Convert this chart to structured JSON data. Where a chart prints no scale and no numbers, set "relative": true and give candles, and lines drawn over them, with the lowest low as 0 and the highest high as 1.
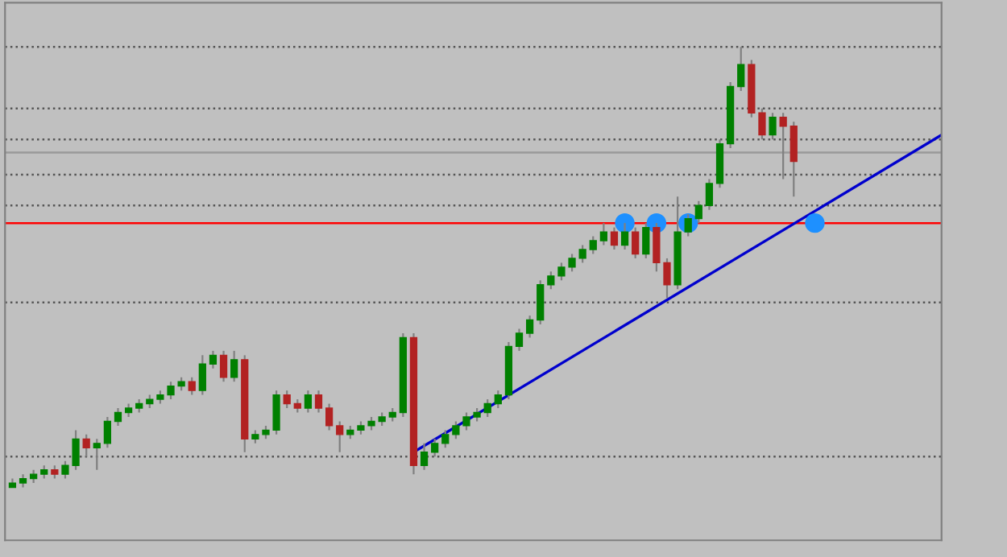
{
  "chart_data": {
    "type": "candlestick",
    "relative": true,
    "grid": false,
    "legend": false,
    "categories": [
      null,
      null,
      null,
      null,
      null,
      null,
      null,
      null,
      null,
      null,
      null,
      null,
      null,
      null,
      null,
      null,
      null,
      null,
      null,
      null,
      null,
      null,
      null,
      null,
      null,
      null,
      null,
      null,
      null,
      null,
      null,
      null,
      null,
      null,
      null,
      null,
      null,
      null,
      null,
      null,
      null,
      null,
      null,
      null,
      null,
      null,
      null,
      null,
      null,
      null,
      null,
      null,
      null,
      null,
      null,
      null,
      null,
      null,
      null,
      null,
      null,
      null,
      null,
      null,
      null,
      null,
      null,
      null,
      null,
      null,
      null,
      null,
      null,
      null,
      null,
      null,
      null,
      null,
      null,
      null,
      null,
      null,
      null,
      null,
      null,
      null,
      null,
      null,
      null
    ],
    "ohlc": [
      [
        0.0,
        0.02,
        0.0,
        0.01
      ],
      [
        0.01,
        0.03,
        0.0,
        0.02
      ],
      [
        0.02,
        0.04,
        0.01,
        0.03
      ],
      [
        0.03,
        0.05,
        0.02,
        0.04
      ],
      [
        0.04,
        0.05,
        0.02,
        0.03
      ],
      [
        0.03,
        0.06,
        0.02,
        0.05
      ],
      [
        0.05,
        0.13,
        0.04,
        0.11
      ],
      [
        0.11,
        0.12,
        0.07,
        0.09
      ],
      [
        0.09,
        0.11,
        0.04,
        0.1
      ],
      [
        0.1,
        0.16,
        0.09,
        0.15
      ],
      [
        0.15,
        0.18,
        0.14,
        0.17
      ],
      [
        0.17,
        0.19,
        0.16,
        0.18
      ],
      [
        0.18,
        0.2,
        0.17,
        0.19
      ],
      [
        0.19,
        0.21,
        0.18,
        0.2
      ],
      [
        0.2,
        0.22,
        0.19,
        0.21
      ],
      [
        0.21,
        0.24,
        0.2,
        0.23
      ],
      [
        0.23,
        0.25,
        0.22,
        0.24
      ],
      [
        0.24,
        0.25,
        0.21,
        0.22
      ],
      [
        0.22,
        0.3,
        0.21,
        0.28
      ],
      [
        0.28,
        0.31,
        0.27,
        0.3
      ],
      [
        0.3,
        0.31,
        0.24,
        0.25
      ],
      [
        0.25,
        0.31,
        0.24,
        0.29
      ],
      [
        0.29,
        0.3,
        0.08,
        0.11
      ],
      [
        0.11,
        0.13,
        0.1,
        0.12
      ],
      [
        0.12,
        0.14,
        0.11,
        0.13
      ],
      [
        0.13,
        0.22,
        0.12,
        0.21
      ],
      [
        0.21,
        0.22,
        0.18,
        0.19
      ],
      [
        0.19,
        0.2,
        0.17,
        0.18
      ],
      [
        0.18,
        0.22,
        0.17,
        0.21
      ],
      [
        0.21,
        0.22,
        0.17,
        0.18
      ],
      [
        0.18,
        0.19,
        0.13,
        0.14
      ],
      [
        0.14,
        0.15,
        0.08,
        0.12
      ],
      [
        0.12,
        0.14,
        0.11,
        0.13
      ],
      [
        0.13,
        0.15,
        0.12,
        0.14
      ],
      [
        0.14,
        0.16,
        0.13,
        0.15
      ],
      [
        0.15,
        0.17,
        0.14,
        0.16
      ],
      [
        0.16,
        0.18,
        0.15,
        0.17
      ],
      [
        0.17,
        0.35,
        0.16,
        0.34
      ],
      [
        0.34,
        0.35,
        0.03,
        0.05
      ],
      [
        0.05,
        0.1,
        0.04,
        0.08
      ],
      [
        0.08,
        0.11,
        0.07,
        0.1
      ],
      [
        0.1,
        0.13,
        0.09,
        0.12
      ],
      [
        0.12,
        0.15,
        0.11,
        0.14
      ],
      [
        0.14,
        0.17,
        0.13,
        0.16
      ],
      [
        0.16,
        0.18,
        0.15,
        0.17
      ],
      [
        0.17,
        0.2,
        0.16,
        0.19
      ],
      [
        0.19,
        0.22,
        0.18,
        0.21
      ],
      [
        0.21,
        0.33,
        0.2,
        0.32
      ],
      [
        0.32,
        0.36,
        0.31,
        0.35
      ],
      [
        0.35,
        0.39,
        0.34,
        0.38
      ],
      [
        0.38,
        0.47,
        0.37,
        0.46
      ],
      [
        0.46,
        0.49,
        0.45,
        0.48
      ],
      [
        0.48,
        0.51,
        0.47,
        0.5
      ],
      [
        0.5,
        0.53,
        0.49,
        0.52
      ],
      [
        0.52,
        0.55,
        0.51,
        0.54
      ],
      [
        0.54,
        0.57,
        0.53,
        0.56
      ],
      [
        0.56,
        0.6,
        0.55,
        0.58
      ],
      [
        0.58,
        0.59,
        0.54,
        0.55
      ],
      [
        0.55,
        0.6,
        0.54,
        0.58
      ],
      [
        0.58,
        0.59,
        0.52,
        0.53
      ],
      [
        0.53,
        0.6,
        0.52,
        0.59
      ],
      [
        0.59,
        0.6,
        0.49,
        0.51
      ],
      [
        0.51,
        0.52,
        0.43,
        0.46
      ],
      [
        0.46,
        0.66,
        0.45,
        0.58
      ],
      [
        0.58,
        0.62,
        0.57,
        0.61
      ],
      [
        0.61,
        0.65,
        0.6,
        0.64
      ],
      [
        0.64,
        0.7,
        0.63,
        0.69
      ],
      [
        0.69,
        0.79,
        0.68,
        0.78
      ],
      [
        0.78,
        0.92,
        0.77,
        0.91
      ],
      [
        0.91,
        1.0,
        0.9,
        0.96
      ],
      [
        0.96,
        0.97,
        0.84,
        0.85
      ],
      [
        0.85,
        0.86,
        0.79,
        0.8
      ],
      [
        0.8,
        0.85,
        0.79,
        0.84
      ],
      [
        0.84,
        0.85,
        0.7,
        0.82
      ],
      [
        0.82,
        0.83,
        0.66,
        0.74
      ],
      null,
      null,
      null,
      null,
      null,
      null,
      null,
      null,
      null,
      null,
      null,
      null,
      null,
      null
    ],
    "colors": [
      "#008000",
      "#008000",
      "#008000",
      "#008000",
      "#b22222",
      "#008000",
      "#008000",
      "#b22222",
      "#008000",
      "#008000",
      "#008000",
      "#008000",
      "#008000",
      "#008000",
      "#008000",
      "#008000",
      "#008000",
      "#b22222",
      "#008000",
      "#008000",
      "#b22222",
      "#008000",
      "#b22222",
      "#008000",
      "#008000",
      "#008000",
      "#b22222",
      "#b22222",
      "#008000",
      "#b22222",
      "#b22222",
      "#b22222",
      "#008000",
      "#008000",
      "#008000",
      "#008000",
      "#008000",
      "#008000",
      "#b22222",
      "#008000",
      "#008000",
      "#008000",
      "#008000",
      "#008000",
      "#008000",
      "#008000",
      "#008000",
      "#008000",
      "#008000",
      "#008000",
      "#008000",
      "#008000",
      "#008000",
      "#008000",
      "#008000",
      "#008000",
      "#008000",
      "#b22222",
      "#008000",
      "#b22222",
      "#008000",
      "#b22222",
      "#b22222",
      "#008000",
      "#008000",
      "#008000",
      "#008000",
      "#008000",
      "#008000",
      "#008000",
      "#b22222",
      "#b22222",
      "#008000",
      "#b22222",
      "#b22222",
      null,
      null,
      null,
      null,
      null,
      null,
      null,
      null,
      null,
      null,
      null,
      null,
      null,
      null
    ],
    "series": [
      {
        "type": "line",
        "color": "#0000cd",
        "values": [
          null,
          null,
          null,
          null,
          null,
          null,
          null,
          null,
          null,
          null,
          null,
          null,
          null,
          null,
          null,
          null,
          null,
          null,
          null,
          null,
          null,
          null,
          null,
          null,
          null,
          null,
          null,
          null,
          null,
          null,
          null,
          null,
          null,
          null,
          null,
          null,
          null,
          null,
          0.08,
          null,
          null,
          null,
          null,
          null,
          null,
          null,
          null,
          null,
          null,
          null,
          null,
          null,
          null,
          null,
          null,
          null,
          null,
          null,
          null,
          null,
          null,
          null,
          null,
          null,
          null,
          null,
          null,
          null,
          null,
          null,
          null,
          null,
          null,
          null,
          null,
          null,
          null,
          null,
          null,
          null,
          null,
          null,
          null,
          null,
          null,
          null,
          null,
          null,
          0.8
        ]
      },
      {
        "type": "scatter",
        "color": "#1e90ff",
        "marker": "circle",
        "values": [
          null,
          null,
          null,
          null,
          null,
          null,
          null,
          null,
          null,
          null,
          null,
          null,
          null,
          null,
          null,
          null,
          null,
          null,
          null,
          null,
          null,
          null,
          null,
          null,
          null,
          null,
          null,
          null,
          null,
          null,
          null,
          null,
          null,
          null,
          null,
          null,
          null,
          null,
          null,
          null,
          null,
          null,
          null,
          null,
          null,
          null,
          null,
          null,
          null,
          null,
          null,
          null,
          null,
          null,
          null,
          null,
          null,
          null,
          0.6,
          null,
          null,
          0.6,
          null,
          null,
          0.6,
          null,
          null,
          null,
          null,
          null,
          null,
          null,
          null,
          null,
          null,
          null,
          0.6,
          null,
          null,
          null,
          null,
          null,
          null,
          null,
          null,
          null,
          null,
          null,
          null
        ]
      }
    ],
    "ref_lines": [
      {
        "axis": "y",
        "value": 0.6,
        "color": "#ff0000",
        "line_style": "solid"
      },
      {
        "axis": "y",
        "value": 0.76,
        "color": "#999999",
        "line_style": "solid"
      },
      {
        "axis": "y",
        "value": 1.0,
        "color": "#555555",
        "line_style": "dotted"
      },
      {
        "axis": "y",
        "value": 0.86,
        "color": "#555555",
        "line_style": "dotted"
      },
      {
        "axis": "y",
        "value": 0.79,
        "color": "#555555",
        "line_style": "dotted"
      },
      {
        "axis": "y",
        "value": 0.71,
        "color": "#555555",
        "line_style": "dotted"
      },
      {
        "axis": "y",
        "value": 0.64,
        "color": "#555555",
        "line_style": "dotted"
      },
      {
        "axis": "y",
        "value": 0.42,
        "color": "#555555",
        "line_style": "dotted"
      },
      {
        "axis": "y",
        "value": 0.07,
        "color": "#555555",
        "line_style": "dotted"
      }
    ]
  }
}
